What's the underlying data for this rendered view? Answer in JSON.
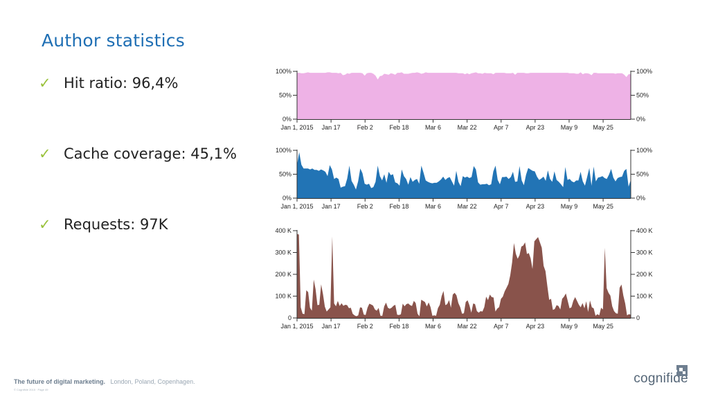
{
  "slide": {
    "title": "Author statistics",
    "bullets": [
      {
        "check": "✓",
        "text": "Hit ratio: 96,4%"
      },
      {
        "check": "✓",
        "text": "Cache coverage: 45,1%"
      },
      {
        "check": "✓",
        "text": "Requests: 97K"
      }
    ]
  },
  "footer": {
    "tagline": "The future of digital marketing.",
    "places": "London, Poland, Copenhagen.",
    "copyright": "© Cognifide 2015 · Page 49"
  },
  "logo": {
    "text": "cognifide"
  },
  "colors": {
    "title": "#1f6fb4",
    "check": "#9ac23c",
    "hit_ratio_fill": "#eeb2e6",
    "cache_coverage_fill": "#2274b5",
    "requests_fill": "#89534b"
  },
  "chart_data": [
    {
      "type": "area",
      "x_ticks": [
        "Jan 1, 2015",
        "Jan 17",
        "Feb 2",
        "Feb 18",
        "Mar 6",
        "Mar 22",
        "Apr 7",
        "Apr 23",
        "May 9",
        "May 25"
      ],
      "y_ticks": [
        "100%",
        "50%",
        "0%"
      ],
      "ylim": [
        0,
        100
      ],
      "y_axis_sides": "both",
      "grid": false,
      "values": [
        97,
        97,
        96,
        96,
        97,
        98,
        97,
        97,
        97,
        97,
        97,
        97,
        97,
        97,
        98,
        98,
        97,
        97,
        97,
        96,
        97,
        92,
        93,
        96,
        95,
        97,
        97,
        97,
        97,
        97,
        96,
        91,
        96,
        97,
        97,
        95,
        91,
        83,
        90,
        91,
        95,
        94,
        93,
        96,
        95,
        93,
        97,
        97,
        98,
        95,
        95,
        95,
        96,
        97,
        97,
        98,
        97,
        95,
        96,
        98,
        97,
        97,
        97,
        97,
        97,
        97,
        97,
        97,
        97,
        97,
        97,
        97,
        97,
        97,
        96,
        96,
        96,
        94,
        96,
        94,
        96,
        97,
        98,
        96,
        96,
        95,
        97,
        96,
        96,
        96,
        94,
        97,
        97,
        97,
        97,
        97,
        96,
        96,
        96,
        97,
        93,
        97,
        97,
        97,
        97,
        96,
        96,
        97,
        97,
        97,
        97,
        97,
        97,
        97,
        97,
        97,
        97,
        97,
        97,
        97,
        97,
        97,
        97,
        97,
        97,
        96,
        96,
        96,
        95,
        95,
        98,
        94,
        96,
        96,
        95,
        92,
        97,
        97,
        96,
        96,
        96,
        96,
        96,
        96,
        96,
        96,
        95,
        96,
        96,
        96,
        93,
        88,
        94,
        94
      ],
      "color": "#eeb2e6"
    },
    {
      "type": "area",
      "x_ticks": [
        "Jan 1, 2015",
        "Jan 17",
        "Feb 2",
        "Feb 18",
        "Mar 6",
        "Mar 22",
        "Apr 7",
        "Apr 23",
        "May 9",
        "May 25"
      ],
      "y_ticks": [
        "100%",
        "50%",
        "0%"
      ],
      "ylim": [
        0,
        100
      ],
      "y_axis_sides": "both",
      "grid": false,
      "values": [
        70,
        96,
        70,
        62,
        62,
        62,
        60,
        62,
        59,
        59,
        57,
        60,
        58,
        55,
        46,
        69,
        60,
        40,
        43,
        40,
        22,
        24,
        25,
        41,
        68,
        36,
        28,
        18,
        35,
        62,
        52,
        30,
        28,
        30,
        21,
        23,
        34,
        68,
        46,
        37,
        50,
        32,
        55,
        48,
        50,
        33,
        31,
        26,
        60,
        46,
        40,
        28,
        44,
        34,
        38,
        40,
        30,
        68,
        53,
        37,
        34,
        32,
        31,
        32,
        32,
        35,
        39,
        45,
        38,
        42,
        44,
        35,
        26,
        57,
        34,
        25,
        46,
        43,
        45,
        42,
        44,
        67,
        60,
        33,
        28,
        29,
        29,
        30,
        27,
        29,
        56,
        68,
        38,
        29,
        44,
        44,
        45,
        40,
        44,
        55,
        34,
        35,
        67,
        37,
        27,
        49,
        63,
        60,
        57,
        56,
        45,
        38,
        41,
        45,
        36,
        58,
        40,
        34,
        56,
        38,
        34,
        29,
        23,
        65,
        38,
        40,
        35,
        33,
        37,
        37,
        55,
        35,
        26,
        44,
        63,
        26,
        66,
        35,
        43,
        44,
        46,
        42,
        40,
        49,
        61,
        43,
        35,
        42,
        44,
        45,
        57,
        61,
        24,
        38
      ],
      "color": "#2274b5"
    },
    {
      "type": "area",
      "x_ticks": [
        "Jan 1, 2015",
        "Jan 17",
        "Feb 2",
        "Feb 18",
        "Mar 6",
        "Mar 22",
        "Apr 7",
        "Apr 23",
        "May 9",
        "May 25"
      ],
      "y_ticks": [
        "400 K",
        "300 K",
        "200 K",
        "100 K",
        "0"
      ],
      "ylim": [
        0,
        410000
      ],
      "y_axis_sides": "both",
      "grid": false,
      "values": [
        394000,
        392000,
        50000,
        20000,
        18000,
        130000,
        121000,
        48000,
        34000,
        180000,
        135000,
        60000,
        62000,
        158000,
        112000,
        53000,
        30000,
        40000,
        50000,
        383000,
        68000,
        55000,
        80000,
        56000,
        69000,
        57000,
        62000,
        60000,
        46000,
        48000,
        20000,
        12000,
        8000,
        12000,
        50000,
        48000,
        16000,
        14000,
        48000,
        67000,
        63000,
        58000,
        40000,
        34000,
        47000,
        10000,
        10000,
        54000,
        72000,
        48000,
        43000,
        48000,
        57000,
        62000,
        15000,
        14000,
        17000,
        67000,
        55000,
        65000,
        68000,
        60000,
        56000,
        80000,
        70000,
        20000,
        8000,
        86000,
        80000,
        75000,
        54000,
        73000,
        51000,
        10000,
        12000,
        10000,
        46000,
        62000,
        103000,
        127000,
        60000,
        65000,
        84000,
        48000,
        110000,
        118000,
        106000,
        70000,
        51000,
        20000,
        22000,
        75000,
        83000,
        59000,
        25000,
        68000,
        65000,
        32000,
        25000,
        32000,
        30000,
        51000,
        100000,
        84000,
        110000,
        98000,
        96000,
        30000,
        44000,
        51000,
        90000,
        100000,
        125000,
        142000,
        160000,
        200000,
        260000,
        352000,
        302000,
        278000,
        295000,
        335000,
        340000,
        355000,
        300000,
        305000,
        280000,
        230000,
        360000,
        370000,
        380000,
        355000,
        330000,
        245000,
        220000,
        150000,
        85000,
        90000,
        38000,
        42000,
        60000,
        56000,
        40000,
        90000,
        100000,
        115000,
        80000,
        45000,
        50000,
        80000,
        98000,
        80000,
        62000,
        50000,
        70000,
        45000,
        78000,
        28000,
        82000,
        50000,
        45000,
        10000,
        18000,
        12000,
        48000,
        40000,
        330000,
        140000,
        118000,
        105000,
        55000,
        32000,
        22000,
        20000,
        142000,
        157000,
        105000,
        68000,
        12000,
        18000,
        15000
      ],
      "color": "#89534b"
    }
  ]
}
